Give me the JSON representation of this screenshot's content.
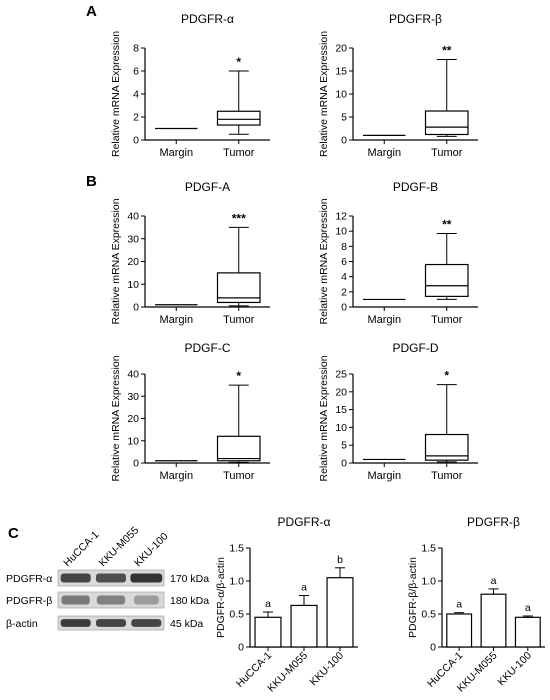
{
  "panels": {
    "A": "A",
    "B": "B",
    "C": "C"
  },
  "chart_data": [
    {
      "id": "a1",
      "type": "box",
      "title": "PDGFR-α",
      "ylabel": "Relative mRNA Expression",
      "ylim": [
        0,
        8
      ],
      "ticks": [
        0,
        2,
        4,
        6,
        8
      ],
      "categories": [
        "Margin",
        "Tumor"
      ],
      "boxes": [
        {
          "name": "Margin",
          "min": 1,
          "q1": 1,
          "median": 1,
          "q3": 1,
          "max": 1
        },
        {
          "name": "Tumor",
          "min": 0.5,
          "q1": 1.3,
          "median": 1.8,
          "q3": 2.5,
          "max": 6.0
        }
      ],
      "significance": "*"
    },
    {
      "id": "a2",
      "type": "box",
      "title": "PDGFR-β",
      "ylabel": "Relative mRNA Expression",
      "ylim": [
        0,
        20
      ],
      "ticks": [
        0,
        5,
        10,
        15,
        20
      ],
      "categories": [
        "Margin",
        "Tumor"
      ],
      "boxes": [
        {
          "name": "Margin",
          "min": 1,
          "q1": 1,
          "median": 1,
          "q3": 1,
          "max": 1
        },
        {
          "name": "Tumor",
          "min": 0.8,
          "q1": 1.2,
          "median": 2.8,
          "q3": 6.3,
          "max": 17.5
        }
      ],
      "significance": "**"
    },
    {
      "id": "b1",
      "type": "box",
      "title": "PDGF-A",
      "ylabel": "Relative mRNA Expression",
      "ylim": [
        0,
        40
      ],
      "ticks": [
        0,
        10,
        20,
        30,
        40
      ],
      "categories": [
        "Margin",
        "Tumor"
      ],
      "boxes": [
        {
          "name": "Margin",
          "min": 1,
          "q1": 1,
          "median": 1,
          "q3": 1,
          "max": 1
        },
        {
          "name": "Tumor",
          "min": 0.5,
          "q1": 2.0,
          "median": 4.0,
          "q3": 15.0,
          "max": 35.0
        }
      ],
      "significance": "***"
    },
    {
      "id": "b2",
      "type": "box",
      "title": "PDGF-B",
      "ylabel": "Relative mRNA Expression",
      "ylim": [
        0,
        12
      ],
      "ticks": [
        0,
        2,
        4,
        6,
        8,
        10,
        12
      ],
      "categories": [
        "Margin",
        "Tumor"
      ],
      "boxes": [
        {
          "name": "Margin",
          "min": 1,
          "q1": 1,
          "median": 1,
          "q3": 1,
          "max": 1
        },
        {
          "name": "Tumor",
          "min": 1.0,
          "q1": 1.4,
          "median": 2.8,
          "q3": 5.6,
          "max": 9.7
        }
      ],
      "significance": "**"
    },
    {
      "id": "b3",
      "type": "box",
      "title": "PDGF-C",
      "ylabel": "Relative mRNA Expression",
      "ylim": [
        0,
        40
      ],
      "ticks": [
        0,
        10,
        20,
        30,
        40
      ],
      "categories": [
        "Margin",
        "Tumor"
      ],
      "boxes": [
        {
          "name": "Margin",
          "min": 1,
          "q1": 1,
          "median": 1,
          "q3": 1,
          "max": 1
        },
        {
          "name": "Tumor",
          "min": 0.3,
          "q1": 1.0,
          "median": 2.0,
          "q3": 12.0,
          "max": 35.0
        }
      ],
      "significance": "*"
    },
    {
      "id": "b4",
      "type": "box",
      "title": "PDGF-D",
      "ylabel": "Relative mRNA Expression",
      "ylim": [
        0,
        25
      ],
      "ticks": [
        0,
        5,
        10,
        15,
        20,
        25
      ],
      "categories": [
        "Margin",
        "Tumor"
      ],
      "boxes": [
        {
          "name": "Margin",
          "min": 1,
          "q1": 1,
          "median": 1,
          "q3": 1,
          "max": 1
        },
        {
          "name": "Tumor",
          "min": 0.3,
          "q1": 0.8,
          "median": 2.0,
          "q3": 8.0,
          "max": 22.0
        }
      ],
      "significance": "*"
    },
    {
      "id": "c1",
      "type": "bar",
      "title": "PDGFR-α",
      "ylabel": "PDGFR-α/β-actin",
      "ylim": [
        0,
        1.5
      ],
      "ticks": [
        "0",
        "0.5",
        "1.0",
        "1.5"
      ],
      "categories": [
        "HuCCA-1",
        "KKU-M055",
        "KKU-100"
      ],
      "values": [
        0.45,
        0.63,
        1.05
      ],
      "errors": [
        0.08,
        0.15,
        0.15
      ],
      "letters": [
        "a",
        "a",
        "b"
      ]
    },
    {
      "id": "c2",
      "type": "bar",
      "title": "PDGFR-β",
      "ylabel": "PDGFR-β/β-actin",
      "ylim": [
        0,
        1.5
      ],
      "ticks": [
        "0",
        "0.5",
        "1.0",
        "1.5"
      ],
      "categories": [
        "HuCCA-1",
        "KKU-M055",
        "KKU-100"
      ],
      "values": [
        0.5,
        0.8,
        0.45
      ],
      "errors": [
        0.02,
        0.08,
        0.02
      ],
      "letters": [
        "a",
        "a",
        "a"
      ]
    }
  ],
  "blot": {
    "lanes": [
      "HuCCA-1",
      "KKU-M055",
      "KKU-100"
    ],
    "rows": [
      {
        "protein": "PDGFR-α",
        "size": "170 kDa"
      },
      {
        "protein": "PDGFR-β",
        "size": "180 kDa"
      },
      {
        "protein": "β-actin",
        "size": "45 kDa"
      }
    ]
  }
}
